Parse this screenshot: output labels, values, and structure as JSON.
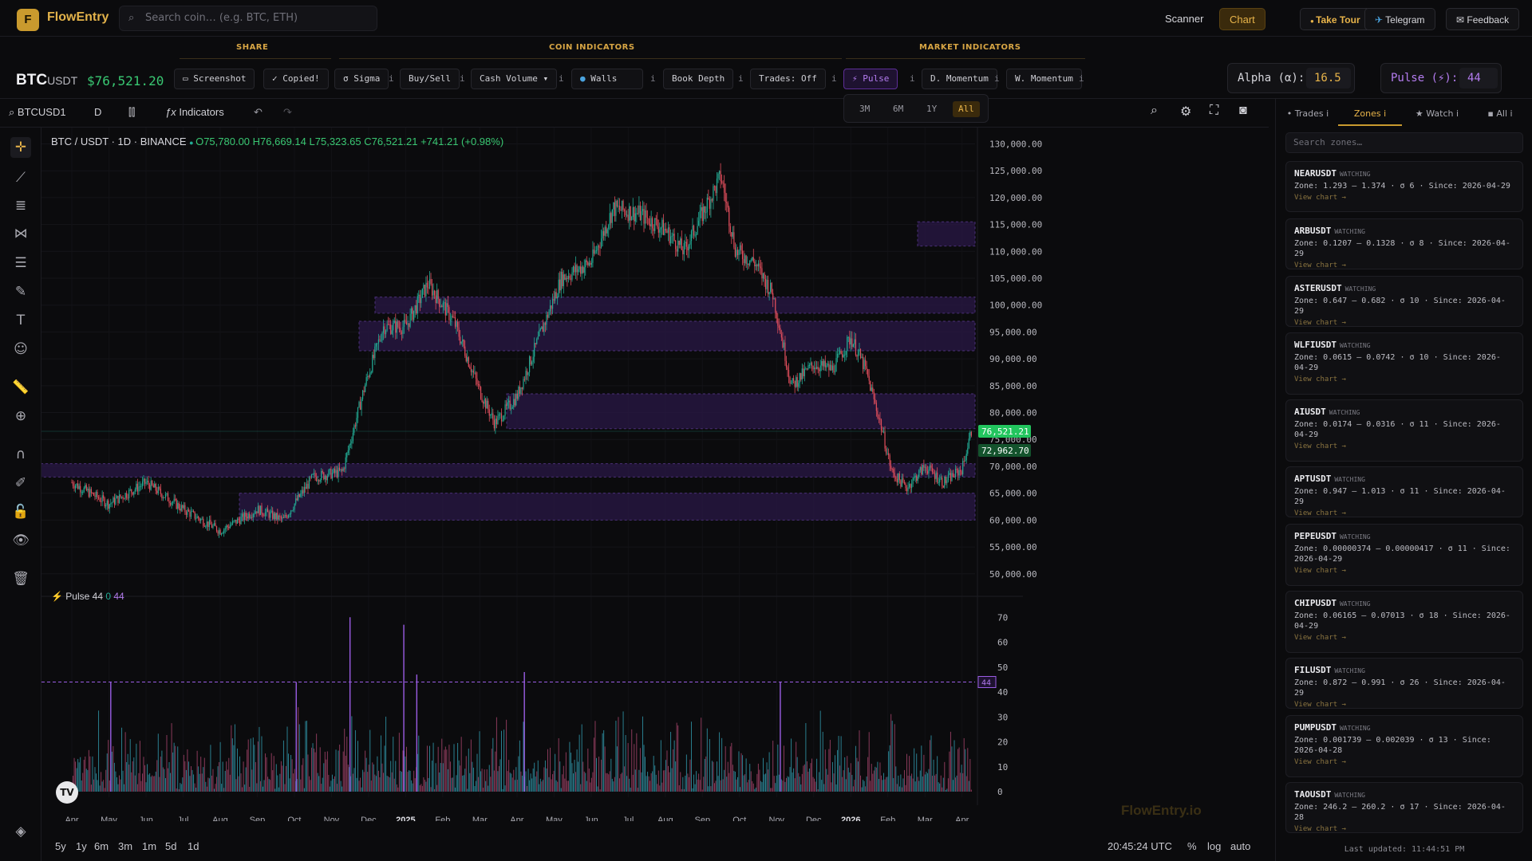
{
  "app": {
    "logo_letter": "F",
    "name": "FlowEntry"
  },
  "search": {
    "placeholder": "Search coin… (e.g. BTC, ETH)"
  },
  "nav": {
    "scanner": "Scanner",
    "chart": "Chart",
    "tour": "Take Tour",
    "telegram": "Telegram",
    "feedback": "Feedback"
  },
  "groups": {
    "share": "SHARE",
    "coin": "COIN INDICATORS",
    "market": "MARKET INDICATORS"
  },
  "pair": {
    "base": "BTC",
    "quote": "USDT",
    "price": "$76,521.20"
  },
  "buttons": {
    "screenshot": "Screenshot",
    "copied": "✓ Copied!",
    "sigma": "σ Sigma",
    "buysell": "Buy/Sell",
    "cashvol": "Cash Volume ▾",
    "walls": "Walls",
    "bookdepth": "Book Depth",
    "trades": "Trades: Off",
    "pulse": "⚡ Pulse",
    "dmom": "D. Momentum",
    "wmom": "W. Momentum",
    "info": "i"
  },
  "params": {
    "alpha_label": "Alpha (α):",
    "alpha_value": "16.5",
    "pulse_label": "Pulse (⚡):",
    "pulse_value": "44"
  },
  "ranges": [
    "3M",
    "6M",
    "1Y",
    "All"
  ],
  "chart_toolbar": {
    "symbol": "BTCUSD1",
    "interval": "D",
    "indicators": "Indicators"
  },
  "legend": {
    "title": "BTC / USDT · 1D · BINANCE",
    "o": "O75,780.00",
    "h": "H76,669.14",
    "l": "L75,323.65",
    "c": "C76,521.21",
    "chg": "+741.21 (+0.98%)"
  },
  "pulse_legend": {
    "label": "Pulse 44",
    "v0": "0",
    "v44": "44"
  },
  "bottom": {
    "ranges": [
      "5y",
      "1y",
      "6m",
      "3m",
      "1m",
      "5d",
      "1d"
    ],
    "time": "20:45:24 UTC",
    "pct": "%",
    "log": "log",
    "auto": "auto"
  },
  "watermark": "FlowEntry.io",
  "colors": {
    "accent": "#c99a2e",
    "up": "#22ab94",
    "down": "#e04e5c",
    "zone": "#2a1845",
    "pulse": "#9b5de5"
  },
  "chart_data": {
    "type": "candlestick",
    "title": "BTC / USDT · 1D · BINANCE",
    "price_axis": [
      130000,
      125000,
      120000,
      115000,
      110000,
      105000,
      100000,
      95000,
      90000,
      85000,
      80000,
      75000,
      70000,
      65000,
      60000,
      55000,
      50000
    ],
    "price_axis_labels": [
      "130,000.00",
      "125,000.00",
      "120,000.00",
      "115,000.00",
      "110,000.00",
      "105,000.00",
      "100,000.00",
      "95,000.00",
      "90,000.00",
      "85,000.00",
      "80,000.00",
      "75,000.00",
      "70,000.00",
      "65,000.00",
      "60,000.00",
      "55,000.00",
      "50,000.00"
    ],
    "ylim": [
      47000,
      132000
    ],
    "time_labels": [
      "Apr",
      "May",
      "Jun",
      "Jul",
      "Aug",
      "Sep",
      "Oct",
      "Nov",
      "Dec",
      "2025",
      "Feb",
      "Mar",
      "Apr",
      "May",
      "Jun",
      "Jul",
      "Aug",
      "Sep",
      "Oct",
      "Nov",
      "Dec",
      "2026",
      "Feb",
      "Mar",
      "Apr"
    ],
    "price_path": [
      {
        "t": 0,
        "p": 67000
      },
      {
        "t": 1.0,
        "p": 63000
      },
      {
        "t": 2.0,
        "p": 67000
      },
      {
        "t": 3.0,
        "p": 62000
      },
      {
        "t": 4.0,
        "p": 58000
      },
      {
        "t": 5.0,
        "p": 62000
      },
      {
        "t": 5.7,
        "p": 60000
      },
      {
        "t": 6.5,
        "p": 68000
      },
      {
        "t": 7.3,
        "p": 69000
      },
      {
        "t": 7.9,
        "p": 85000
      },
      {
        "t": 8.4,
        "p": 96000
      },
      {
        "t": 9.0,
        "p": 96000
      },
      {
        "t": 9.6,
        "p": 104000
      },
      {
        "t": 10.3,
        "p": 97000
      },
      {
        "t": 11.0,
        "p": 84000
      },
      {
        "t": 11.4,
        "p": 78000
      },
      {
        "t": 12.0,
        "p": 83000
      },
      {
        "t": 12.6,
        "p": 94000
      },
      {
        "t": 13.2,
        "p": 105000
      },
      {
        "t": 14.0,
        "p": 108000
      },
      {
        "t": 14.6,
        "p": 118000
      },
      {
        "t": 15.3,
        "p": 117000
      },
      {
        "t": 16.0,
        "p": 114000
      },
      {
        "t": 16.5,
        "p": 110000
      },
      {
        "t": 17.5,
        "p": 124000
      },
      {
        "t": 17.9,
        "p": 110000
      },
      {
        "t": 18.4,
        "p": 108000
      },
      {
        "t": 18.9,
        "p": 102000
      },
      {
        "t": 19.4,
        "p": 85000
      },
      {
        "t": 20.0,
        "p": 89000
      },
      {
        "t": 20.5,
        "p": 88000
      },
      {
        "t": 21.0,
        "p": 94000
      },
      {
        "t": 21.4,
        "p": 88000
      },
      {
        "t": 21.8,
        "p": 78000
      },
      {
        "t": 22.1,
        "p": 69000
      },
      {
        "t": 22.5,
        "p": 66000
      },
      {
        "t": 23.0,
        "p": 70000
      },
      {
        "t": 23.5,
        "p": 67000
      },
      {
        "t": 24.0,
        "p": 69500
      },
      {
        "t": 24.25,
        "p": 76521
      }
    ],
    "zones": [
      [
        111000,
        115500
      ],
      [
        98500,
        101500
      ],
      [
        91500,
        97000
      ],
      [
        77000,
        83500
      ],
      [
        68000,
        70500
      ],
      [
        60000,
        65000
      ]
    ],
    "markers": [
      {
        "label": "76,521.21",
        "value": 76521,
        "color": "#22c55e"
      },
      {
        "label": "72,962.70",
        "value": 72962,
        "color": "#14532d"
      }
    ],
    "pulse_axis": [
      70,
      60,
      50,
      40,
      30,
      20,
      10,
      0
    ],
    "pulse_threshold": {
      "label": "44",
      "value": 44
    },
    "pulse_ylim": [
      0,
      72
    ],
    "pulse_spikes": [
      {
        "t": 1.05,
        "v": 44
      },
      {
        "t": 6.05,
        "v": 44
      },
      {
        "t": 7.5,
        "v": 70
      },
      {
        "t": 8.95,
        "v": 67
      },
      {
        "t": 9.3,
        "v": 47
      },
      {
        "t": 12.2,
        "v": 48
      },
      {
        "t": 19.1,
        "v": 44
      }
    ]
  },
  "zones_panel": {
    "tabs": {
      "trades": "• Trades  i",
      "zones": "Zones  i",
      "watch": "★ Watch  i",
      "all": "▪ All  i"
    },
    "search_placeholder": "Search zones…",
    "cards": [
      {
        "name": "NEARUSDT",
        "status": "WATCHING",
        "info": "Zone: 1.293 – 1.374 · σ 6 · Since: 2026-04-29",
        "link": "View chart →"
      },
      {
        "name": "ARBUSDT",
        "status": "WATCHING",
        "info": "Zone: 0.1207 – 0.1328 · σ 8 · Since: 2026-04-29",
        "link": "View chart →"
      },
      {
        "name": "ASTERUSDT",
        "status": "WATCHING",
        "info": "Zone: 0.647 – 0.682 · σ 10 · Since: 2026-04-29",
        "link": "View chart →"
      },
      {
        "name": "WLFIUSDT",
        "status": "WATCHING",
        "info": "Zone: 0.0615 – 0.0742 · σ 10 · Since: 2026-04-29",
        "link": "View chart →"
      },
      {
        "name": "AIUSDT",
        "status": "WATCHING",
        "info": "Zone: 0.0174 – 0.0316 · σ 11 · Since: 2026-04-29",
        "link": "View chart →"
      },
      {
        "name": "APTUSDT",
        "status": "WATCHING",
        "info": "Zone: 0.947 – 1.013 · σ 11 · Since: 2026-04-29",
        "link": "View chart →"
      },
      {
        "name": "PEPEUSDT",
        "status": "WATCHING",
        "info": "Zone: 0.00000374 – 0.00000417 · σ 11 · Since: 2026-04-29",
        "link": "View chart →"
      },
      {
        "name": "CHIPUSDT",
        "status": "WATCHING",
        "info": "Zone: 0.06165 – 0.07013 · σ 18 · Since: 2026-04-29",
        "link": "View chart →"
      },
      {
        "name": "FILUSDT",
        "status": "WATCHING",
        "info": "Zone: 0.872 – 0.991 · σ 26 · Since: 2026-04-29",
        "link": "View chart →"
      },
      {
        "name": "PUMPUSDT",
        "status": "WATCHING",
        "info": "Zone: 0.001739 – 0.002039 · σ 13 · Since: 2026-04-28",
        "link": "View chart →"
      },
      {
        "name": "TAOUSDT",
        "status": "WATCHING",
        "info": "Zone: 246.2 – 260.2 · σ 17 · Since: 2026-04-28",
        "link": "View chart →"
      }
    ],
    "last_updated": "Last updated: 11:44:51 PM"
  }
}
